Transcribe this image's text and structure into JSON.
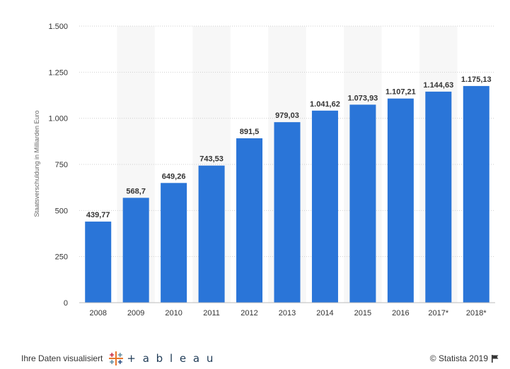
{
  "chart_data": {
    "type": "bar",
    "title": "",
    "xlabel": "",
    "ylabel": "Staatsverschuldung in Milliarden Euro",
    "categories": [
      "2008",
      "2009",
      "2010",
      "2011",
      "2012",
      "2013",
      "2014",
      "2015",
      "2016",
      "2017*",
      "2018*"
    ],
    "values": [
      439.77,
      568.7,
      649.26,
      743.53,
      891.5,
      979.03,
      1041.62,
      1073.93,
      1107.21,
      1144.63,
      1175.13
    ],
    "value_labels": [
      "439,77",
      "568,7",
      "649,26",
      "743,53",
      "891,5",
      "979,03",
      "1.041,62",
      "1.073,93",
      "1.107,21",
      "1.144,63",
      "1.175,13"
    ],
    "yticks": [
      0,
      250,
      500,
      750,
      1000,
      1250,
      1500
    ],
    "ytick_labels": [
      "0",
      "250",
      "500",
      "750",
      "1.000",
      "1.250",
      "1.500"
    ],
    "ylim": [
      0,
      1500
    ],
    "bar_color": "#2a75d8",
    "grid": true,
    "legend": "none"
  },
  "footer": {
    "visualized_by": "Ihre Daten visualisiert",
    "brand": "+ a b l e a u",
    "copyright": "© Statista 2019"
  },
  "icons": {
    "brand_logo": "tableau-cross-logo-icon",
    "flag": "flag-icon"
  }
}
